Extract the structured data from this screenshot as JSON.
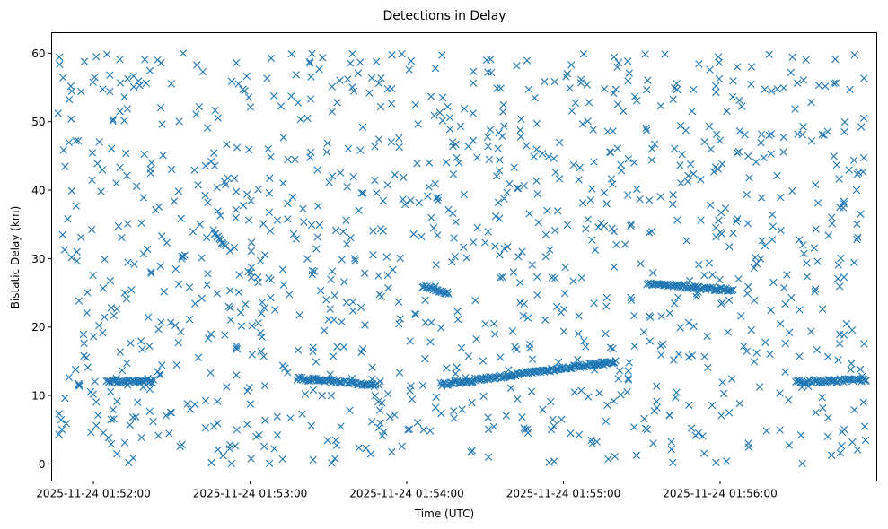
{
  "chart_data": {
    "type": "scatter",
    "title": "Detections in Delay",
    "xlabel": "Time (UTC)",
    "ylabel": "Bistatic Delay (km)",
    "marker": "x",
    "color": "#1f77b4",
    "grid": false,
    "legend": "none",
    "xlim": [
      "2025-11-24 01:51:44",
      "2025-11-24 01:57:00"
    ],
    "ylim": [
      -2.5,
      63
    ],
    "x_ticks": [
      "2025-11-24 01:52:00",
      "2025-11-24 01:53:00",
      "2025-11-24 01:54:00",
      "2025-11-24 01:55:00",
      "2025-11-24 01:56:00"
    ],
    "y_ticks": [
      0,
      10,
      20,
      30,
      40,
      50,
      60
    ],
    "time_range": [
      "2025-11-24 01:51:46",
      "2025-11-24 01:56:56"
    ],
    "delay_range": [
      0,
      60
    ],
    "tracks": [
      {
        "time": [
          "2025-11-24 01:52:05",
          "2025-11-24 01:52:23"
        ],
        "delay": [
          12.0,
          12.1
        ]
      },
      {
        "time": [
          "2025-11-24 01:53:18",
          "2025-11-24 01:53:35"
        ],
        "delay": [
          12.5,
          12.0
        ]
      },
      {
        "time": [
          "2025-11-24 01:53:36",
          "2025-11-24 01:53:48"
        ],
        "delay": [
          11.9,
          11.5
        ]
      },
      {
        "time": [
          "2025-11-24 01:54:13",
          "2025-11-24 01:55:20"
        ],
        "delay": [
          11.6,
          15.0
        ]
      },
      {
        "time": [
          "2025-11-24 01:56:29",
          "2025-11-24 01:56:56"
        ],
        "delay": [
          12.0,
          12.3
        ]
      },
      {
        "time": [
          "2025-11-24 01:52:46",
          "2025-11-24 01:52:50"
        ],
        "delay": [
          34.0,
          32.0
        ]
      },
      {
        "time": [
          "2025-11-24 01:54:06",
          "2025-11-24 01:54:16"
        ],
        "delay": [
          26.0,
          25.0
        ]
      },
      {
        "time": [
          "2025-11-24 01:55:32",
          "2025-11-24 01:56:05"
        ],
        "delay": [
          26.3,
          25.4
        ]
      }
    ]
  }
}
